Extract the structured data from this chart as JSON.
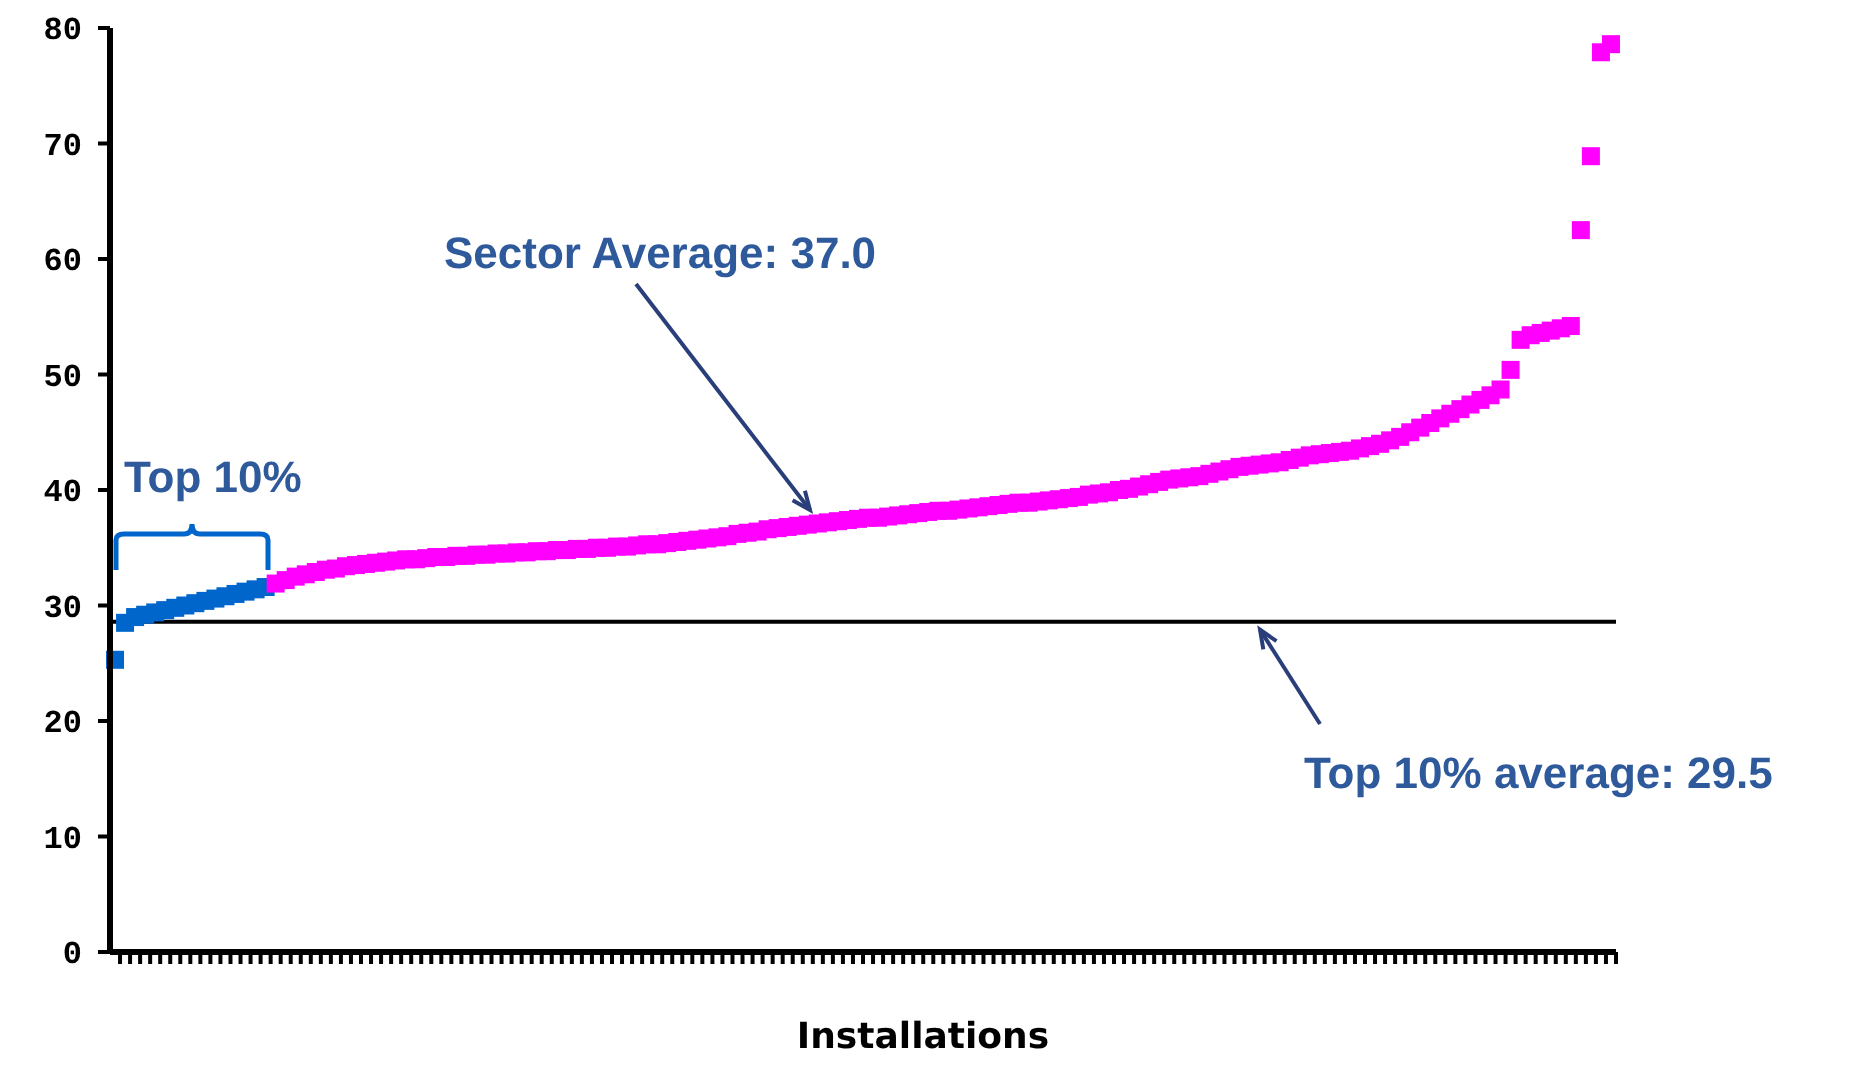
{
  "chart_data": {
    "type": "scatter",
    "xlabel": "Installations",
    "categories": [
      null,
      null,
      null,
      null,
      null,
      null,
      null,
      null,
      null,
      null,
      null,
      null,
      null,
      null,
      null,
      null,
      null,
      null,
      null,
      null,
      null,
      null,
      null,
      null,
      null,
      null,
      null,
      null,
      null,
      null,
      null,
      null,
      null,
      null,
      null,
      null,
      null,
      null,
      null,
      null,
      null,
      null,
      null,
      null,
      null,
      null,
      null,
      null,
      null,
      null,
      null,
      null,
      null,
      null,
      null,
      null,
      null,
      null,
      null,
      null,
      null,
      null,
      null,
      null,
      null,
      null,
      null,
      null,
      null,
      null,
      null,
      null,
      null,
      null,
      null,
      null,
      null,
      null,
      null,
      null,
      null,
      null,
      null,
      null,
      null,
      null,
      null,
      null,
      null,
      null,
      null,
      null,
      null,
      null,
      null,
      null,
      null,
      null,
      null,
      null,
      null,
      null,
      null,
      null,
      null,
      null,
      null,
      null,
      null,
      null,
      null,
      null,
      null,
      null,
      null,
      null,
      null,
      null,
      null,
      null,
      null,
      null,
      null,
      null,
      null,
      null,
      null,
      null,
      null,
      null,
      null,
      null,
      null,
      null,
      null,
      null,
      null,
      null,
      null,
      null,
      null,
      null,
      null,
      null,
      null,
      null,
      null,
      null,
      null,
      null
    ],
    "series": [
      {
        "color": "#0066cc",
        "values": [
          25.3,
          28.5,
          29.0,
          29.2,
          29.4,
          29.6,
          29.8,
          30.0,
          30.2,
          30.4,
          30.6,
          30.8,
          31.0,
          31.2,
          31.4,
          31.6,
          null,
          null,
          null,
          null,
          null,
          null,
          null,
          null,
          null,
          null,
          null,
          null,
          null,
          null,
          null,
          null,
          null,
          null,
          null,
          null,
          null,
          null,
          null,
          null,
          null,
          null,
          null,
          null,
          null,
          null,
          null,
          null,
          null,
          null,
          null,
          null,
          null,
          null,
          null,
          null,
          null,
          null,
          null,
          null,
          null,
          null,
          null,
          null,
          null,
          null,
          null,
          null,
          null,
          null,
          null,
          null,
          null,
          null,
          null,
          null,
          null,
          null,
          null,
          null,
          null,
          null,
          null,
          null,
          null,
          null,
          null,
          null,
          null,
          null,
          null,
          null,
          null,
          null,
          null,
          null,
          null,
          null,
          null,
          null,
          null,
          null,
          null,
          null,
          null,
          null,
          null,
          null,
          null,
          null,
          null,
          null,
          null,
          null,
          null,
          null,
          null,
          null,
          null,
          null,
          null,
          null,
          null,
          null,
          null,
          null,
          null,
          null,
          null,
          null,
          null,
          null,
          null,
          null,
          null,
          null,
          null,
          null,
          null,
          null,
          null,
          null,
          null,
          null,
          null,
          null,
          null,
          null,
          null,
          null
        ]
      },
      {
        "color": "#ff00ff",
        "values": [
          null,
          null,
          null,
          null,
          null,
          null,
          null,
          null,
          null,
          null,
          null,
          null,
          null,
          null,
          null,
          null,
          31.9,
          32.2,
          32.5,
          32.7,
          32.9,
          33.1,
          33.2,
          33.4,
          33.5,
          33.6,
          33.7,
          33.8,
          33.9,
          34.0,
          34.0,
          34.1,
          34.2,
          34.2,
          34.3,
          34.3,
          34.4,
          34.4,
          34.5,
          34.5,
          34.6,
          34.6,
          34.7,
          34.7,
          34.8,
          34.8,
          34.9,
          34.9,
          35.0,
          35.0,
          35.1,
          35.1,
          35.2,
          35.3,
          35.3,
          35.4,
          35.5,
          35.6,
          35.7,
          35.8,
          35.9,
          36.0,
          36.2,
          36.3,
          36.4,
          36.6,
          36.7,
          36.8,
          36.9,
          37.0,
          37.1,
          37.2,
          37.3,
          37.4,
          37.5,
          37.6,
          37.6,
          37.7,
          37.8,
          37.9,
          38.0,
          38.1,
          38.2,
          38.2,
          38.3,
          38.4,
          38.5,
          38.6,
          38.7,
          38.8,
          38.9,
          38.9,
          39.0,
          39.1,
          39.2,
          39.3,
          39.4,
          39.6,
          39.7,
          39.8,
          40.0,
          40.1,
          40.3,
          40.5,
          40.7,
          40.9,
          41.0,
          41.1,
          41.2,
          41.4,
          41.6,
          41.8,
          42.0,
          42.1,
          42.2,
          42.3,
          42.4,
          42.6,
          42.8,
          43.0,
          43.1,
          43.2,
          43.3,
          43.4,
          43.6,
          43.8,
          44.0,
          44.3,
          44.6,
          45.0,
          45.4,
          45.8,
          46.2,
          46.6,
          47.0,
          47.4,
          47.8,
          48.2,
          48.7,
          50.4,
          53.0,
          53.4,
          53.6,
          53.8,
          54.0,
          54.2,
          62.5,
          68.9,
          77.9,
          78.6
        ]
      }
    ],
    "ylim": [
      0,
      80
    ],
    "yticks": [
      0,
      10,
      20,
      30,
      40,
      50,
      60,
      70,
      80
    ],
    "grid": false,
    "marker": "square",
    "ref_lines": [
      {
        "axis": "y",
        "value": 28.6,
        "color": "#000000"
      }
    ],
    "annotations": [
      "Sector Average: 37.0",
      "Top 10%",
      "Top 10% average: 29.5"
    ]
  }
}
